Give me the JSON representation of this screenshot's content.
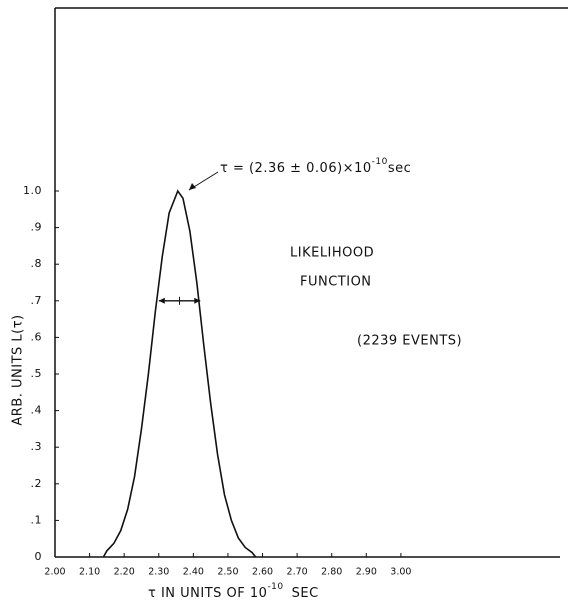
{
  "chart_data": {
    "type": "line",
    "annotation": {
      "text": "τ = (2.36 ± 0.06)×10",
      "exponent": "-10",
      "unit": "sec"
    },
    "label_lines": [
      "LIKELIHOOD",
      "FUNCTION"
    ],
    "events": "(2239 EVENTS)",
    "xlabel": {
      "text": "τ  IN  UNITS  OF  10",
      "exponent": "-10",
      "unit": "SEC"
    },
    "ylabel": "ARB. UNITS   L(τ)",
    "x": [
      2.14,
      2.15,
      2.17,
      2.19,
      2.21,
      2.23,
      2.25,
      2.27,
      2.29,
      2.31,
      2.33,
      2.355,
      2.37,
      2.39,
      2.41,
      2.43,
      2.45,
      2.47,
      2.49,
      2.51,
      2.53,
      2.55,
      2.57,
      2.58
    ],
    "series": [
      {
        "color": "#111111",
        "values": [
          0,
          0.017,
          0.037,
          0.072,
          0.13,
          0.22,
          0.35,
          0.5,
          0.67,
          0.82,
          0.94,
          1.0,
          0.98,
          0.89,
          0.75,
          0.58,
          0.42,
          0.28,
          0.17,
          0.1,
          0.052,
          0.026,
          0.012,
          0
        ]
      }
    ],
    "width_marker": {
      "y": 0.7,
      "center": 2.36,
      "error": 0.06
    },
    "xlim": [
      2.0,
      3.46
    ],
    "ylim": [
      0,
      1.5
    ],
    "xticks": [
      {
        "value": 2.0,
        "label": "2.00"
      },
      {
        "value": 2.1,
        "label": "2.10"
      },
      {
        "value": 2.2,
        "label": "2.20"
      },
      {
        "value": 2.3,
        "label": "2.30"
      },
      {
        "value": 2.4,
        "label": "2.40"
      },
      {
        "value": 2.5,
        "label": "2.50"
      },
      {
        "value": 2.6,
        "label": "2.60"
      },
      {
        "value": 2.7,
        "label": "2.70"
      },
      {
        "value": 2.8,
        "label": "2.80"
      },
      {
        "value": 2.9,
        "label": "2.90"
      },
      {
        "value": 3.0,
        "label": "3.00"
      }
    ],
    "yticks": [
      0,
      {
        "value": 0.1,
        "label": ".1"
      },
      {
        "value": 0.2,
        "label": ".2"
      },
      {
        "value": 0.3,
        "label": ".3"
      },
      {
        "value": 0.4,
        "label": ".4"
      },
      {
        "value": 0.5,
        "label": ".5"
      },
      {
        "value": 0.6,
        "label": ".6"
      },
      {
        "value": 0.7,
        "label": ".7"
      },
      {
        "value": 0.8,
        "label": ".8"
      },
      {
        "value": 0.9,
        "label": ".9"
      },
      {
        "value": 1.0,
        "label": "1.0"
      }
    ],
    "grid": false
  }
}
